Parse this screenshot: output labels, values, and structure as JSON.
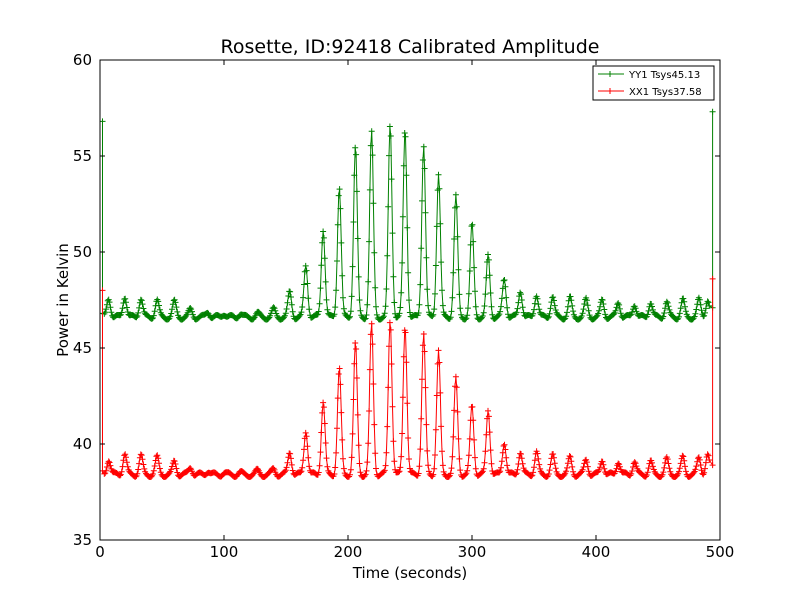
{
  "chart_data": {
    "type": "line",
    "title": "Rosette, ID:92418 Calibrated Amplitude",
    "xlabel": "Time (seconds)",
    "ylabel": "Power in Kelvin",
    "xlim": [
      0,
      500
    ],
    "ylim": [
      35,
      60
    ],
    "xticks": [
      "0",
      "100",
      "200",
      "300",
      "400",
      "500"
    ],
    "yticks": [
      "35",
      "40",
      "45",
      "50",
      "55",
      "60"
    ],
    "legend_position": "top-right",
    "grid": false,
    "series": [
      {
        "name": "YY1 Tsys45.13",
        "color": "#008000",
        "marker": "+",
        "baseline": 46.6,
        "start_point": [
          2,
          56.8
        ],
        "end_point": [
          494,
          57.3
        ],
        "peaks": [
          [
            7,
            47.6
          ],
          [
            20,
            47.7
          ],
          [
            33,
            47.6
          ],
          [
            46,
            47.5
          ],
          [
            60,
            47.4
          ],
          [
            73,
            47.0
          ],
          [
            87,
            46.9
          ],
          [
            100,
            46.8
          ],
          [
            113,
            46.8
          ],
          [
            127,
            46.8
          ],
          [
            140,
            47.0
          ],
          [
            153,
            47.9
          ],
          [
            166,
            49.3
          ],
          [
            180,
            51.2
          ],
          [
            193,
            53.4
          ],
          [
            206,
            55.5
          ],
          [
            219,
            56.2
          ],
          [
            234,
            56.6
          ],
          [
            246,
            56.4
          ],
          [
            261,
            55.6
          ],
          [
            273,
            54.1
          ],
          [
            287,
            52.9
          ],
          [
            300,
            51.4
          ],
          [
            313,
            49.8
          ],
          [
            326,
            48.6
          ],
          [
            339,
            48.0
          ],
          [
            352,
            47.8
          ],
          [
            365,
            47.7
          ],
          [
            379,
            47.6
          ],
          [
            392,
            47.5
          ],
          [
            405,
            47.5
          ],
          [
            418,
            47.4
          ],
          [
            431,
            47.3
          ],
          [
            444,
            47.4
          ],
          [
            457,
            47.4
          ],
          [
            470,
            47.5
          ],
          [
            483,
            47.5
          ],
          [
            490,
            47.5
          ]
        ]
      },
      {
        "name": "XX1 Tsys37.58",
        "color": "#ff0000",
        "marker": "+",
        "baseline": 38.4,
        "start_point": [
          2,
          48.0
        ],
        "end_point": [
          494,
          48.6
        ],
        "peaks": [
          [
            7,
            39.2
          ],
          [
            20,
            39.5
          ],
          [
            33,
            39.4
          ],
          [
            46,
            39.3
          ],
          [
            60,
            39.1
          ],
          [
            73,
            38.8
          ],
          [
            87,
            38.6
          ],
          [
            100,
            38.5
          ],
          [
            113,
            38.5
          ],
          [
            127,
            38.6
          ],
          [
            140,
            38.7
          ],
          [
            153,
            39.6
          ],
          [
            166,
            40.7
          ],
          [
            180,
            42.2
          ],
          [
            193,
            43.9
          ],
          [
            206,
            45.2
          ],
          [
            219,
            46.2
          ],
          [
            234,
            46.5
          ],
          [
            246,
            46.2
          ],
          [
            261,
            45.7
          ],
          [
            273,
            44.8
          ],
          [
            287,
            43.4
          ],
          [
            300,
            42.0
          ],
          [
            313,
            41.8
          ],
          [
            326,
            40.1
          ],
          [
            339,
            39.6
          ],
          [
            352,
            39.6
          ],
          [
            365,
            39.4
          ],
          [
            379,
            39.3
          ],
          [
            392,
            39.2
          ],
          [
            405,
            39.2
          ],
          [
            418,
            39.1
          ],
          [
            431,
            39.1
          ],
          [
            444,
            39.1
          ],
          [
            457,
            39.2
          ],
          [
            470,
            39.3
          ],
          [
            483,
            39.3
          ],
          [
            490,
            39.4
          ]
        ]
      }
    ]
  }
}
